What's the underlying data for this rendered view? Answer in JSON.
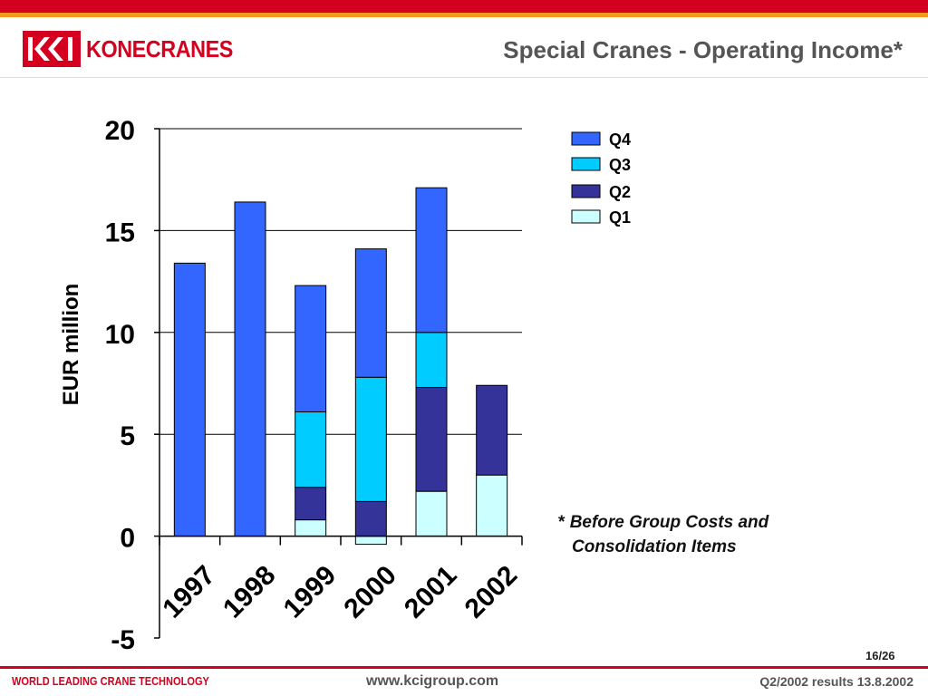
{
  "header": {
    "logo_text": "KONECRANES",
    "title": "Special Cranes - Operating Income*"
  },
  "chart_data": {
    "type": "bar",
    "stacked": true,
    "categories": [
      "1997",
      "1998",
      "1999",
      "2000",
      "2001",
      "2002"
    ],
    "series": [
      {
        "name": "Q1",
        "color": "#ccffff",
        "values": [
          0,
          0,
          0.8,
          -0.4,
          2.2,
          3.0
        ]
      },
      {
        "name": "Q2",
        "color": "#333399",
        "values": [
          0,
          0,
          1.6,
          1.7,
          5.1,
          4.4
        ]
      },
      {
        "name": "Q3",
        "color": "#00ccff",
        "values": [
          0,
          0,
          3.7,
          6.1,
          2.7,
          0
        ]
      },
      {
        "name": "Q4",
        "color": "#3366ff",
        "values": [
          13.4,
          16.4,
          6.2,
          6.3,
          7.1,
          0
        ]
      }
    ],
    "legend_order": [
      "Q4",
      "Q3",
      "Q2",
      "Q1"
    ],
    "ylabel": "EUR million",
    "ylim": [
      -5,
      20
    ],
    "yticks": [
      "-5",
      "0",
      "5",
      "10",
      "15",
      "20"
    ],
    "grid": true,
    "legend_position": "top-right"
  },
  "footnote": {
    "star": "*",
    "line1": "Before Group Costs and",
    "line2": "Consolidation Items"
  },
  "footer": {
    "page": "16/26",
    "left": "WORLD LEADING CRANE TECHNOLOGY",
    "url": "www.kcigroup.com",
    "right": "Q2/2002 results 13.8.2002"
  }
}
